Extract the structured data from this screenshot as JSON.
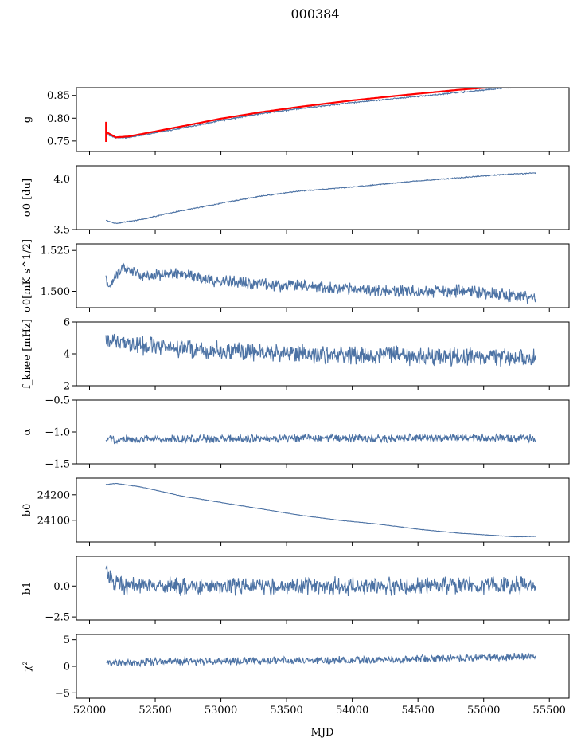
{
  "figure": {
    "title": "000384",
    "xlabel": "MJD"
  },
  "colors": {
    "series": "#4c72a4",
    "fit": "#ff0000",
    "axes": "#000000",
    "background": "#ffffff"
  },
  "chart_data": [
    {
      "type": "line",
      "ylabel": "g",
      "xlim": [
        51900,
        55650
      ],
      "ylim": [
        0.727,
        0.867
      ],
      "yticks": [
        0.75,
        0.8,
        0.85
      ],
      "ytick_labels": [
        "0.75",
        "0.80",
        "0.85"
      ],
      "grid": false,
      "series": [
        {
          "role": "data",
          "color": "#4c72a4",
          "x": [
            52125,
            52200,
            52300,
            52500,
            52700,
            53000,
            53300,
            53600,
            54000,
            54400,
            54800,
            55100,
            55400
          ],
          "y": [
            0.765,
            0.757,
            0.758,
            0.768,
            0.778,
            0.795,
            0.81,
            0.821,
            0.834,
            0.845,
            0.856,
            0.865,
            0.872
          ]
        },
        {
          "role": "fit",
          "color": "#ff0000",
          "x": [
            52125,
            52200,
            52300,
            52500,
            52700,
            53000,
            53300,
            53600,
            54000,
            54400,
            54800,
            55100
          ],
          "y": [
            0.77,
            0.758,
            0.76,
            0.771,
            0.782,
            0.799,
            0.813,
            0.825,
            0.839,
            0.851,
            0.862,
            0.869
          ]
        }
      ]
    },
    {
      "type": "line",
      "ylabel": "σ0 [du]",
      "xlim": [
        51900,
        55650
      ],
      "ylim": [
        3.5,
        4.13
      ],
      "yticks": [
        3.5,
        4.0
      ],
      "ytick_labels": [
        "3.5",
        "4.0"
      ],
      "grid": false,
      "series": [
        {
          "role": "data",
          "color": "#4c72a4",
          "x": [
            52125,
            52200,
            52400,
            52600,
            52800,
            53000,
            53300,
            53600,
            54000,
            54400,
            54800,
            55100,
            55400
          ],
          "y": [
            3.59,
            3.56,
            3.6,
            3.66,
            3.71,
            3.76,
            3.83,
            3.88,
            3.92,
            3.97,
            4.01,
            4.04,
            4.06
          ]
        }
      ]
    },
    {
      "type": "line",
      "ylabel": "σ0[mK s^1/2]",
      "xlim": [
        51900,
        55650
      ],
      "ylim": [
        1.49,
        1.529
      ],
      "yticks": [
        1.5,
        1.525
      ],
      "ytick_labels": [
        "1.500",
        "1.525"
      ],
      "grid": false,
      "series": [
        {
          "role": "data",
          "color": "#4c72a4",
          "x": [
            52125,
            52150,
            52250,
            52400,
            52700,
            53000,
            53300,
            53600,
            54000,
            54400,
            54800,
            55100,
            55300,
            55400
          ],
          "y": [
            1.508,
            1.503,
            1.515,
            1.509,
            1.511,
            1.506,
            1.504,
            1.504,
            1.501,
            1.5,
            1.5,
            1.498,
            1.497,
            1.495
          ]
        }
      ]
    },
    {
      "type": "line",
      "ylabel": "f_knee [mHz]",
      "xlim": [
        51900,
        55650
      ],
      "ylim": [
        2,
        6
      ],
      "yticks": [
        2,
        4,
        6
      ],
      "ytick_labels": [
        "2",
        "4",
        "6"
      ],
      "grid": false,
      "series": [
        {
          "role": "data",
          "color": "#4c72a4",
          "x": [
            52125,
            52400,
            52800,
            53200,
            53600,
            54000,
            54400,
            54800,
            55100,
            55400
          ],
          "y": [
            4.8,
            4.5,
            4.3,
            4.1,
            4.0,
            3.9,
            3.9,
            3.8,
            3.8,
            3.7
          ]
        }
      ]
    },
    {
      "type": "line",
      "ylabel": "α",
      "xlim": [
        51900,
        55650
      ],
      "ylim": [
        -1.5,
        -0.5
      ],
      "yticks": [
        -1.5,
        -1.0,
        -0.5
      ],
      "ytick_labels": [
        "−1.5",
        "−1.0",
        "−0.5"
      ],
      "grid": false,
      "series": [
        {
          "role": "data",
          "color": "#4c72a4",
          "x": [
            52125,
            52800,
            53500,
            54200,
            54900,
            55400
          ],
          "y": [
            -1.12,
            -1.11,
            -1.1,
            -1.1,
            -1.09,
            -1.1
          ]
        }
      ]
    },
    {
      "type": "line",
      "ylabel": "b0",
      "xlim": [
        51900,
        55650
      ],
      "ylim": [
        24015,
        24265
      ],
      "yticks": [
        24100,
        24200
      ],
      "ytick_labels": [
        "24100",
        "24200"
      ],
      "grid": false,
      "series": [
        {
          "role": "data",
          "color": "#4c72a4",
          "x": [
            52125,
            52200,
            52400,
            52700,
            53000,
            53300,
            53600,
            53900,
            54200,
            54500,
            54800,
            55100,
            55250,
            55400
          ],
          "y": [
            24240,
            24245,
            24230,
            24195,
            24170,
            24145,
            24120,
            24100,
            24085,
            24065,
            24050,
            24040,
            24035,
            24037
          ]
        }
      ]
    },
    {
      "type": "line",
      "ylabel": "b1",
      "xlim": [
        51900,
        55650
      ],
      "ylim": [
        -2.75,
        2.4
      ],
      "yticks": [
        -2.5,
        0.0
      ],
      "ytick_labels": [
        "−2.5",
        "0.0"
      ],
      "grid": false,
      "series": [
        {
          "role": "data",
          "color": "#4c72a4",
          "x": [
            52125,
            52140,
            52170,
            52250,
            52800,
            53500,
            54200,
            54900,
            55400
          ],
          "y": [
            1.8,
            1.0,
            0.2,
            0.0,
            0.0,
            0.0,
            0.0,
            0.0,
            0.1
          ]
        }
      ]
    },
    {
      "type": "line",
      "ylabel": "χ²",
      "xlim": [
        51900,
        55650
      ],
      "ylim": [
        -6,
        6
      ],
      "yticks": [
        -5,
        0,
        5
      ],
      "ytick_labels": [
        "−5",
        "0",
        "5"
      ],
      "xticks": [
        52000,
        52500,
        53000,
        53500,
        54000,
        54500,
        55000,
        55500
      ],
      "xtick_labels": [
        "52000",
        "52500",
        "53000",
        "53500",
        "54000",
        "54500",
        "55000",
        "55500"
      ],
      "grid": false,
      "series": [
        {
          "role": "data",
          "color": "#4c72a4",
          "x": [
            52125,
            52800,
            53500,
            54200,
            54900,
            55400
          ],
          "y": [
            0.6,
            1.0,
            1.1,
            1.2,
            1.6,
            2.0
          ]
        }
      ]
    }
  ]
}
